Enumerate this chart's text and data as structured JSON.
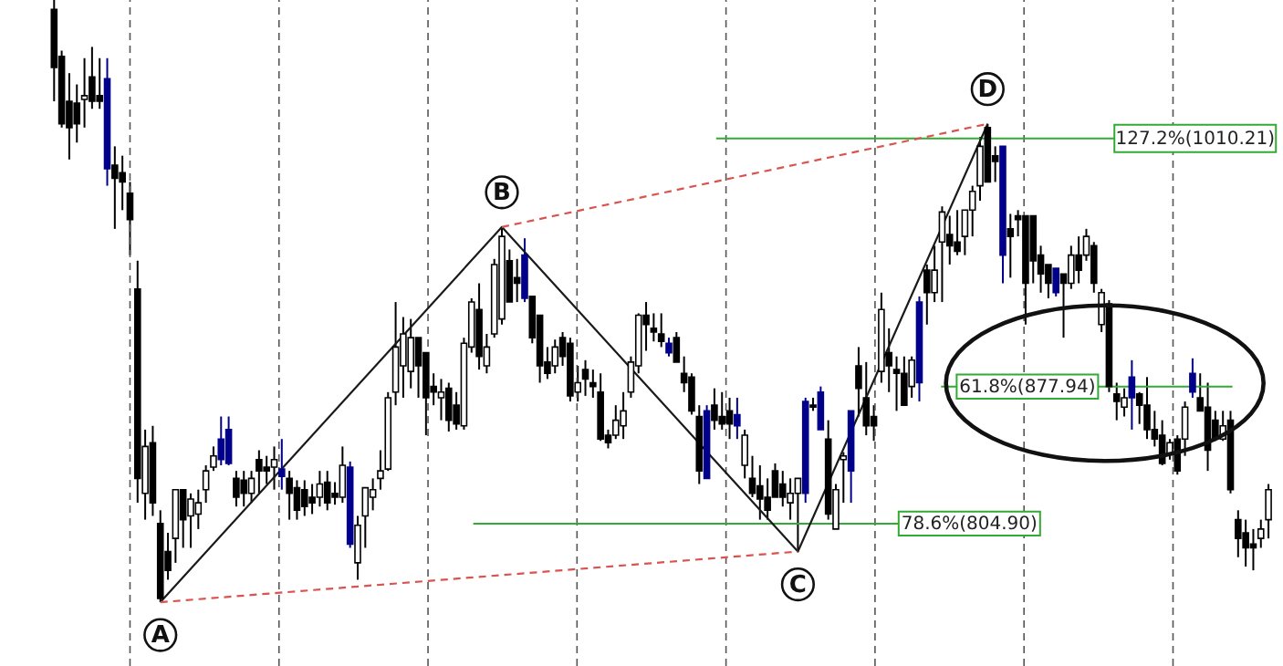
{
  "chart_data": {
    "type": "candlestick",
    "categories": [
      null,
      null,
      null,
      null,
      null,
      null,
      null,
      null,
      null,
      null,
      null,
      null,
      null,
      null,
      null,
      null,
      null,
      null,
      null,
      null,
      null,
      null,
      null,
      null,
      null,
      null,
      null,
      null,
      null,
      null,
      null,
      null,
      null,
      null,
      null,
      null,
      null,
      null,
      null,
      null,
      null,
      null,
      null,
      null,
      null,
      null,
      null,
      null,
      null,
      null,
      null,
      null,
      null,
      null,
      null,
      null,
      null,
      null,
      null,
      null,
      null,
      null,
      null,
      null,
      null,
      null,
      null,
      null,
      null,
      null,
      null,
      null,
      null,
      null,
      null,
      null,
      null,
      null,
      null,
      null,
      null,
      null,
      null,
      null,
      null,
      null,
      null,
      null,
      null,
      null,
      null,
      null,
      null,
      null,
      null,
      null,
      null,
      null,
      null,
      null,
      null,
      null,
      null,
      null,
      null,
      null,
      null,
      null,
      null,
      null,
      null,
      null,
      null,
      null,
      null,
      null,
      null,
      null,
      null,
      null,
      null,
      null,
      null,
      null,
      null,
      null,
      null,
      null,
      null,
      null,
      null,
      null,
      null,
      null,
      null,
      null,
      null,
      null,
      null,
      null,
      null,
      null,
      null,
      null,
      null,
      null,
      null,
      null,
      null,
      null,
      null,
      null,
      null,
      null,
      null,
      null,
      null,
      null,
      null,
      null,
      null
    ],
    "ohlc": [
      [
        1079,
        1084,
        1030,
        1048
      ],
      [
        1054,
        1057,
        1016,
        1018
      ],
      [
        1030,
        1045,
        999,
        1016
      ],
      [
        1029,
        1039,
        1008,
        1018
      ],
      [
        1031,
        1053,
        1016,
        1033
      ],
      [
        1043,
        1059,
        1026,
        1030
      ],
      [
        1033,
        1053,
        1026,
        1030
      ],
      [
        1042,
        1053,
        985,
        994
      ],
      [
        996,
        1006,
        962,
        989
      ],
      [
        992,
        1001,
        972,
        987
      ],
      [
        981,
        987,
        948,
        967
      ],
      [
        930,
        945,
        816,
        829
      ],
      [
        821,
        855,
        807,
        846
      ],
      [
        848,
        857,
        809,
        816
      ],
      [
        805,
        812,
        763,
        765
      ],
      [
        790,
        800,
        775,
        780
      ],
      [
        797,
        823,
        784,
        823
      ],
      [
        823,
        823,
        792,
        807
      ],
      [
        809,
        821,
        792,
        818
      ],
      [
        810,
        823,
        802,
        816
      ],
      [
        823,
        836,
        816,
        833
      ],
      [
        835,
        846,
        833,
        841
      ],
      [
        850,
        862,
        836,
        839
      ],
      [
        855,
        862,
        836,
        837
      ],
      [
        829,
        833,
        814,
        819
      ],
      [
        828,
        833,
        814,
        821
      ],
      [
        821,
        833,
        816,
        829
      ],
      [
        839,
        844,
        821,
        833
      ],
      [
        835,
        841,
        826,
        833
      ],
      [
        835,
        846,
        823,
        839
      ],
      [
        834,
        850,
        823,
        830
      ],
      [
        829,
        833,
        807,
        821
      ],
      [
        824,
        828,
        807,
        812
      ],
      [
        823,
        828,
        809,
        814
      ],
      [
        819,
        826,
        810,
        816
      ],
      [
        819,
        833,
        814,
        826
      ],
      [
        827,
        833,
        812,
        816
      ],
      [
        821,
        827,
        815,
        819
      ],
      [
        819,
        846,
        816,
        836
      ],
      [
        835,
        838,
        792,
        794
      ],
      [
        784,
        809,
        775,
        804
      ],
      [
        809,
        824,
        792,
        824
      ],
      [
        819,
        829,
        812,
        823
      ],
      [
        829,
        844,
        823,
        833
      ],
      [
        834,
        875,
        833,
        872
      ],
      [
        875,
        923,
        868,
        899
      ],
      [
        889,
        915,
        872,
        906
      ],
      [
        886,
        914,
        877,
        904
      ],
      [
        904,
        904,
        872,
        889
      ],
      [
        896,
        896,
        852,
        872
      ],
      [
        878,
        885,
        868,
        875
      ],
      [
        872,
        882,
        860,
        875
      ],
      [
        877,
        880,
        854,
        860
      ],
      [
        868,
        875,
        855,
        858
      ],
      [
        857,
        904,
        855,
        901
      ],
      [
        899,
        925,
        896,
        923
      ],
      [
        919,
        933,
        887,
        894
      ],
      [
        889,
        906,
        885,
        899
      ],
      [
        906,
        946,
        904,
        943
      ],
      [
        914,
        963,
        911,
        958
      ],
      [
        945,
        951,
        923,
        923
      ],
      [
        936,
        946,
        923,
        933
      ],
      [
        948,
        957,
        923,
        925
      ],
      [
        926,
        926,
        901,
        904
      ],
      [
        916,
        916,
        880,
        889
      ],
      [
        891,
        899,
        882,
        885
      ],
      [
        889,
        903,
        885,
        899
      ],
      [
        904,
        907,
        889,
        894
      ],
      [
        901,
        904,
        870,
        873
      ],
      [
        875,
        889,
        870,
        880
      ],
      [
        887,
        892,
        873,
        882
      ],
      [
        880,
        887,
        872,
        878
      ],
      [
        875,
        885,
        849,
        850
      ],
      [
        852,
        855,
        845,
        848
      ],
      [
        852,
        868,
        850,
        860
      ],
      [
        857,
        875,
        850,
        865
      ],
      [
        875,
        894,
        872,
        891
      ],
      [
        889,
        917,
        885,
        916
      ],
      [
        916,
        923,
        897,
        911
      ],
      [
        909,
        917,
        902,
        907
      ],
      [
        906,
        917,
        899,
        902
      ],
      [
        901,
        904,
        894,
        896
      ],
      [
        904,
        907,
        891,
        891
      ],
      [
        885,
        894,
        875,
        880
      ],
      [
        883,
        885,
        863,
        865
      ],
      [
        862,
        868,
        826,
        833
      ],
      [
        865,
        868,
        829,
        829
      ],
      [
        868,
        877,
        855,
        860
      ],
      [
        862,
        875,
        855,
        858
      ],
      [
        865,
        872,
        850,
        858
      ],
      [
        863,
        872,
        850,
        857
      ],
      [
        836,
        855,
        829,
        852
      ],
      [
        829,
        841,
        819,
        821
      ],
      [
        825,
        836,
        807,
        818
      ],
      [
        819,
        829,
        807,
        812
      ],
      [
        833,
        837,
        819,
        819
      ],
      [
        826,
        833,
        814,
        819
      ],
      [
        816,
        829,
        807,
        821
      ],
      [
        821,
        829,
        790,
        829
      ],
      [
        870,
        872,
        816,
        821
      ],
      [
        868,
        872,
        865,
        867
      ],
      [
        875,
        878,
        855,
        855
      ],
      [
        850,
        860,
        807,
        810
      ],
      [
        802,
        826,
        802,
        823
      ],
      [
        839,
        843,
        816,
        841
      ],
      [
        865,
        865,
        816,
        833
      ],
      [
        889,
        899,
        862,
        877
      ],
      [
        872,
        891,
        852,
        857
      ],
      [
        862,
        868,
        849,
        857
      ],
      [
        886,
        928,
        880,
        919
      ],
      [
        896,
        909,
        875,
        889
      ],
      [
        887,
        894,
        865,
        885
      ],
      [
        885,
        894,
        868,
        868
      ],
      [
        878,
        894,
        872,
        892
      ],
      [
        923,
        926,
        870,
        880
      ],
      [
        940,
        943,
        911,
        928
      ],
      [
        928,
        953,
        923,
        940
      ],
      [
        955,
        974,
        923,
        971
      ],
      [
        959,
        969,
        943,
        953
      ],
      [
        955,
        972,
        948,
        950
      ],
      [
        958,
        972,
        948,
        972
      ],
      [
        972,
        985,
        958,
        982
      ],
      [
        985,
        1011,
        977,
        1006
      ],
      [
        1016,
        1018,
        987,
        987
      ],
      [
        1001,
        1006,
        987,
        998
      ],
      [
        1006,
        1006,
        933,
        948
      ],
      [
        962,
        970,
        936,
        958
      ],
      [
        969,
        972,
        958,
        967
      ],
      [
        969,
        969,
        911,
        933
      ],
      [
        969,
        969,
        933,
        945
      ],
      [
        948,
        953,
        928,
        938
      ],
      [
        943,
        943,
        925,
        933
      ],
      [
        941,
        941,
        926,
        928
      ],
      [
        938,
        938,
        904,
        933
      ],
      [
        933,
        953,
        930,
        948
      ],
      [
        948,
        958,
        933,
        940
      ],
      [
        948,
        962,
        945,
        958
      ],
      [
        953,
        955,
        928,
        933
      ],
      [
        911,
        930,
        907,
        928
      ],
      [
        922,
        924,
        875,
        878
      ],
      [
        874,
        880,
        860,
        870
      ],
      [
        867,
        877,
        862,
        872
      ],
      [
        883,
        892,
        855,
        872
      ],
      [
        874,
        875,
        858,
        868
      ],
      [
        868,
        883,
        850,
        855
      ],
      [
        855,
        865,
        846,
        850
      ],
      [
        852,
        860,
        836,
        837
      ],
      [
        842,
        850,
        839,
        848
      ],
      [
        850,
        852,
        831,
        833
      ],
      [
        850,
        870,
        841,
        867
      ],
      [
        885,
        893,
        872,
        875
      ],
      [
        872,
        885,
        865,
        865
      ],
      [
        867,
        880,
        833,
        844
      ],
      [
        860,
        865,
        849,
        850
      ],
      [
        850,
        865,
        849,
        857
      ],
      [
        860,
        865,
        821,
        823
      ],
      [
        807,
        812,
        787,
        797
      ],
      [
        800,
        807,
        782,
        792
      ],
      [
        794,
        802,
        780,
        792
      ],
      [
        797,
        807,
        792,
        802
      ],
      [
        807,
        826,
        797,
        823
      ]
    ],
    "colors": [
      "#000000",
      "#000000",
      "#000000",
      "#000000",
      "#ffffff",
      "#000000",
      "#000000",
      "#00008b",
      "#000000",
      "#000000",
      "#000000",
      "#000000",
      "#ffffff",
      "#000000",
      "#000000",
      "#000000",
      "#ffffff",
      "#000000",
      "#ffffff",
      "#ffffff",
      "#ffffff",
      "#ffffff",
      "#00008b",
      "#00008b",
      "#000000",
      "#000000",
      "#ffffff",
      "#000000",
      "#000000",
      "#ffffff",
      "#00008b",
      "#000000",
      "#000000",
      "#000000",
      "#000000",
      "#ffffff",
      "#000000",
      "#000000",
      "#ffffff",
      "#00008b",
      "#ffffff",
      "#ffffff",
      "#ffffff",
      "#ffffff",
      "#ffffff",
      "#ffffff",
      "#ffffff",
      "#ffffff",
      "#000000",
      "#000000",
      "#000000",
      "#ffffff",
      "#000000",
      "#000000",
      "#ffffff",
      "#ffffff",
      "#000000",
      "#ffffff",
      "#ffffff",
      "#ffffff",
      "#000000",
      "#000000",
      "#00008b",
      "#000000",
      "#000000",
      "#000000",
      "#ffffff",
      "#000000",
      "#000000",
      "#ffffff",
      "#000000",
      "#000000",
      "#000000",
      "#000000",
      "#ffffff",
      "#ffffff",
      "#ffffff",
      "#ffffff",
      "#000000",
      "#000000",
      "#000000",
      "#00008b",
      "#000000",
      "#000000",
      "#000000",
      "#000000",
      "#00008b",
      "#000000",
      "#000000",
      "#000000",
      "#00008b",
      "#ffffff",
      "#000000",
      "#000000",
      "#000000",
      "#000000",
      "#000000",
      "#ffffff",
      "#ffffff",
      "#00008b",
      "#000000",
      "#00008b",
      "#000000",
      "#ffffff",
      "#ffffff",
      "#00008b",
      "#000000",
      "#000000",
      "#000000",
      "#ffffff",
      "#000000",
      "#000000",
      "#000000",
      "#ffffff",
      "#00008b",
      "#000000",
      "#ffffff",
      "#ffffff",
      "#000000",
      "#000000",
      "#ffffff",
      "#ffffff",
      "#ffffff",
      "#000000",
      "#000000",
      "#00008b",
      "#000000",
      "#000000",
      "#000000",
      "#000000",
      "#000000",
      "#000000",
      "#00008b",
      "#000000",
      "#ffffff",
      "#000000",
      "#ffffff",
      "#000000",
      "#ffffff",
      "#000000",
      "#000000",
      "#ffffff",
      "#00008b",
      "#000000",
      "#000000",
      "#000000",
      "#000000",
      "#ffffff",
      "#000000",
      "#ffffff",
      "#00008b",
      "#000000",
      "#000000",
      "#000000",
      "#ffffff",
      "#000000",
      "#000000",
      "#000000",
      "#000000",
      "#ffffff",
      "#ffffff"
    ],
    "series": [
      {
        "type": "line",
        "color": "#1a1a1a",
        "line_style": "solid",
        "values": [
          null,
          null,
          null,
          null,
          null,
          null,
          null,
          null,
          null,
          null,
          null,
          null,
          null,
          null,
          763,
          null,
          null,
          null,
          null,
          null,
          null,
          null,
          null,
          null,
          null,
          null,
          null,
          null,
          null,
          null,
          null,
          null,
          null,
          null,
          null,
          null,
          null,
          null,
          null,
          null,
          null,
          null,
          null,
          null,
          null,
          null,
          null,
          null,
          null,
          null,
          null,
          null,
          null,
          null,
          null,
          null,
          null,
          null,
          null,
          963,
          null,
          null,
          null,
          null,
          null,
          null,
          null,
          null,
          null,
          null,
          null,
          null,
          null,
          null,
          null,
          null,
          null,
          null,
          null,
          null,
          null,
          null,
          null,
          null,
          null,
          null,
          null,
          null,
          null,
          null,
          null,
          null,
          null,
          null,
          null,
          null,
          null,
          null,
          790,
          null,
          null,
          null,
          null,
          null,
          null,
          null,
          null,
          null,
          null,
          null,
          null,
          null,
          null,
          null,
          null,
          null,
          null,
          null,
          null,
          null,
          null,
          null,
          null,
          1018,
          null,
          null,
          null,
          null,
          null,
          null,
          null,
          null,
          null,
          null,
          null,
          null,
          null,
          null,
          null,
          null,
          null,
          null,
          null,
          null,
          null,
          null,
          null,
          null,
          null,
          null,
          null,
          null,
          null,
          null,
          null,
          null,
          null,
          null,
          null,
          null,
          null
        ]
      },
      {
        "type": "line",
        "color": "#d9534f",
        "line_style": "dashed",
        "values": [
          null,
          null,
          null,
          null,
          null,
          null,
          null,
          null,
          null,
          null,
          null,
          null,
          null,
          null,
          763,
          null,
          null,
          null,
          null,
          null,
          null,
          null,
          null,
          null,
          null,
          null,
          null,
          null,
          null,
          null,
          null,
          null,
          null,
          null,
          null,
          null,
          null,
          null,
          null,
          null,
          null,
          null,
          null,
          null,
          null,
          null,
          null,
          null,
          null,
          null,
          null,
          null,
          null,
          null,
          null,
          null,
          null,
          null,
          null,
          null,
          null,
          null,
          null,
          null,
          null,
          null,
          null,
          null,
          null,
          null,
          null,
          null,
          null,
          null,
          null,
          null,
          null,
          null,
          null,
          null,
          null,
          null,
          null,
          null,
          null,
          null,
          null,
          null,
          null,
          null,
          null,
          null,
          null,
          null,
          null,
          null,
          null,
          null,
          790,
          null,
          null,
          null,
          null,
          null,
          null,
          null,
          null,
          null,
          null,
          null,
          null,
          null,
          null,
          null,
          null,
          null,
          null,
          null,
          null,
          null,
          null,
          null,
          null,
          null,
          null,
          null,
          null,
          null,
          null,
          null,
          null,
          null,
          null,
          null,
          null,
          null,
          null,
          null,
          null,
          null,
          null,
          null,
          null,
          null,
          null,
          null,
          null,
          null,
          null,
          null,
          null,
          null,
          null,
          null,
          null,
          null,
          null,
          null,
          null,
          null,
          null
        ]
      },
      {
        "type": "line",
        "color": "#d9534f",
        "line_style": "dashed",
        "values": [
          null,
          null,
          null,
          null,
          null,
          null,
          null,
          null,
          null,
          null,
          null,
          null,
          null,
          null,
          null,
          null,
          null,
          null,
          null,
          null,
          null,
          null,
          null,
          null,
          null,
          null,
          null,
          null,
          null,
          null,
          null,
          null,
          null,
          null,
          null,
          null,
          null,
          null,
          null,
          null,
          null,
          null,
          null,
          null,
          null,
          null,
          null,
          null,
          null,
          null,
          null,
          null,
          null,
          null,
          null,
          null,
          null,
          null,
          null,
          963,
          null,
          null,
          null,
          null,
          null,
          null,
          null,
          null,
          null,
          null,
          null,
          null,
          null,
          null,
          null,
          null,
          null,
          null,
          null,
          null,
          null,
          null,
          null,
          null,
          null,
          null,
          null,
          null,
          null,
          null,
          null,
          null,
          null,
          null,
          null,
          null,
          null,
          null,
          null,
          null,
          null,
          null,
          null,
          null,
          null,
          null,
          null,
          null,
          null,
          null,
          null,
          null,
          null,
          null,
          null,
          null,
          null,
          null,
          null,
          null,
          null,
          null,
          null,
          1018,
          null,
          null,
          null,
          null,
          null,
          null,
          null,
          null,
          null,
          null,
          null,
          null,
          null,
          null,
          null,
          null,
          null,
          null,
          null,
          null,
          null,
          null,
          null,
          null,
          null,
          null,
          null,
          null,
          null,
          null,
          null,
          null,
          null,
          null,
          null,
          null,
          null
        ]
      }
    ],
    "ref_lines": [
      {
        "axis": "y",
        "value": 1010.21,
        "label": "127.2%(1010.21)",
        "color": "#33aa33"
      },
      {
        "axis": "y",
        "value": 877.94,
        "label": "61.8%(877.94)",
        "color": "#33aa33"
      },
      {
        "axis": "y",
        "value": 804.9,
        "label": "78.6%(804.90)",
        "color": "#33aa33"
      }
    ],
    "annotations": [
      "A",
      "B",
      "C",
      "D"
    ],
    "ylim": [
      729,
      1084
    ],
    "tick_labels": false,
    "grid": "x"
  }
}
